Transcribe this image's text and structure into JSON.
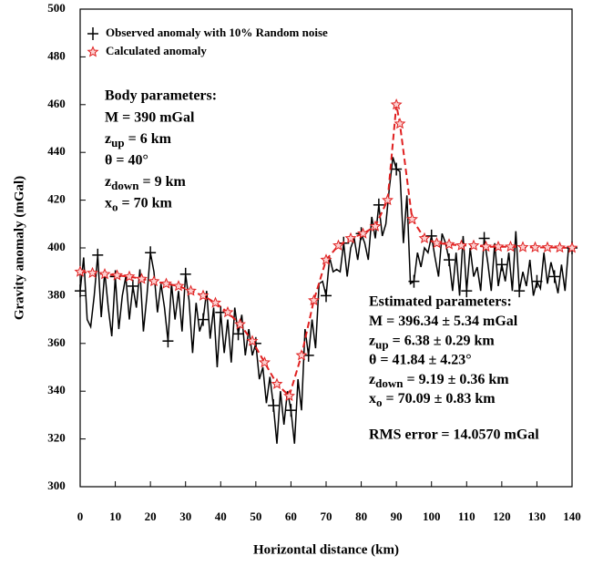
{
  "chart_data": {
    "type": "line",
    "xlabel": "Horizontal distance (km)",
    "ylabel": "Gravity anomaly (mGal)",
    "xlim": [
      0,
      140
    ],
    "ylim": [
      300,
      500
    ],
    "xticks": [
      0,
      10,
      20,
      30,
      40,
      50,
      60,
      70,
      80,
      90,
      100,
      110,
      120,
      130,
      140
    ],
    "yticks": [
      300,
      320,
      340,
      360,
      380,
      400,
      420,
      440,
      460,
      480,
      500
    ],
    "legend": "upper left",
    "series": [
      {
        "name": "Observed anomaly with 10% Random noise",
        "color": "#000000",
        "marker": "plus",
        "x": [
          0,
          1,
          2,
          3,
          4,
          5,
          6,
          7,
          8,
          9,
          10,
          11,
          12,
          13,
          14,
          15,
          16,
          17,
          18,
          19,
          20,
          21,
          22,
          23,
          24,
          25,
          26,
          27,
          28,
          29,
          30,
          31,
          32,
          33,
          34,
          35,
          36,
          37,
          38,
          39,
          40,
          41,
          42,
          43,
          44,
          45,
          46,
          47,
          48,
          49,
          50,
          51,
          52,
          53,
          54,
          55,
          56,
          57,
          58,
          59,
          60,
          61,
          62,
          63,
          64,
          65,
          66,
          67,
          68,
          69,
          70,
          71,
          72,
          73,
          74,
          75,
          76,
          77,
          78,
          79,
          80,
          81,
          82,
          83,
          84,
          85,
          86,
          87,
          88,
          89,
          90,
          91,
          92,
          93,
          94,
          95,
          96,
          97,
          98,
          99,
          100,
          101,
          102,
          103,
          104,
          105,
          106,
          107,
          108,
          109,
          110,
          111,
          112,
          113,
          114,
          115,
          116,
          117,
          118,
          119,
          120,
          121,
          122,
          123,
          124,
          125,
          126,
          127,
          128,
          129,
          130,
          131,
          132,
          133,
          134,
          135,
          136,
          137,
          138,
          139,
          140
        ],
        "values": [
          382,
          396,
          370,
          367,
          380,
          397,
          371,
          390,
          375,
          363,
          388,
          366,
          380,
          388,
          370,
          384,
          375,
          391,
          365,
          380,
          398,
          390,
          373,
          385,
          375,
          361,
          385,
          370,
          382,
          365,
          389,
          378,
          356,
          377,
          365,
          370,
          382,
          362,
          375,
          350,
          373,
          356,
          370,
          352,
          375,
          364,
          372,
          355,
          366,
          355,
          360,
          345,
          350,
          335,
          346,
          334,
          318,
          340,
          326,
          340,
          332,
          318,
          345,
          332,
          366,
          355,
          370,
          358,
          385,
          386,
          380,
          396,
          390,
          391,
          390,
          402,
          388,
          400,
          404,
          395,
          406,
          402,
          395,
          413,
          404,
          418,
          405,
          410,
          425,
          438,
          433,
          432,
          402,
          422,
          385,
          386,
          398,
          392,
          400,
          398,
          405,
          396,
          388,
          406,
          402,
          395,
          382,
          398,
          380,
          405,
          382,
          400,
          388,
          392,
          382,
          404,
          394,
          382,
          402,
          384,
          393,
          386,
          398,
          382,
          407,
          382,
          390,
          384,
          395,
          380,
          386,
          383,
          398,
          385,
          394,
          388,
          381,
          393,
          382,
          400,
          400
        ]
      },
      {
        "name": "Calculated anomaly",
        "color": "#e02020",
        "marker": "star",
        "x": [
          0,
          3.5,
          7,
          10.5,
          14,
          17.5,
          21,
          24.5,
          28,
          31.5,
          35,
          38.5,
          42,
          45.5,
          49,
          52.5,
          56,
          59.5,
          63,
          66.5,
          70,
          73.5,
          77,
          80.5,
          84,
          87.5,
          90,
          91,
          94.5,
          98,
          101.5,
          105,
          108.5,
          112,
          115.5,
          119,
          122.5,
          126,
          129.5,
          133,
          136.5,
          140
        ],
        "values": [
          390,
          389.5,
          389,
          388.5,
          388,
          387,
          386,
          385,
          384,
          382,
          380,
          377,
          373,
          368,
          361,
          352,
          343,
          338,
          355,
          378,
          395,
          401,
          404,
          406,
          409,
          420,
          460,
          452,
          412,
          404,
          402,
          401.5,
          401,
          401,
          400.5,
          400.5,
          400.5,
          400.3,
          400.2,
          400.2,
          400.1,
          400
        ]
      }
    ],
    "body_parameters": {
      "title": "Body parameters:",
      "lines": [
        [
          "M = 390 mGal"
        ],
        [
          "z",
          "up",
          " = 6 km"
        ],
        [
          "θ = 40°"
        ],
        [
          "z",
          "down",
          " = 9 km"
        ],
        [
          "x",
          "o",
          " = 70 km"
        ]
      ]
    },
    "estimated_parameters": {
      "title": "Estimated parameters:",
      "lines": [
        [
          "M = 396.34 ± 5.34 mGal"
        ],
        [
          "z",
          "up",
          " = 6.38 ± 0.29 km"
        ],
        [
          "θ = 41.84 ± 4.23°"
        ],
        [
          "z",
          "down",
          " = 9.19 ± 0.36 km"
        ],
        [
          "x",
          "o",
          " = 70.09 ± 0.83 km"
        ]
      ],
      "rms": "RMS error = 14.0570 mGal"
    }
  }
}
